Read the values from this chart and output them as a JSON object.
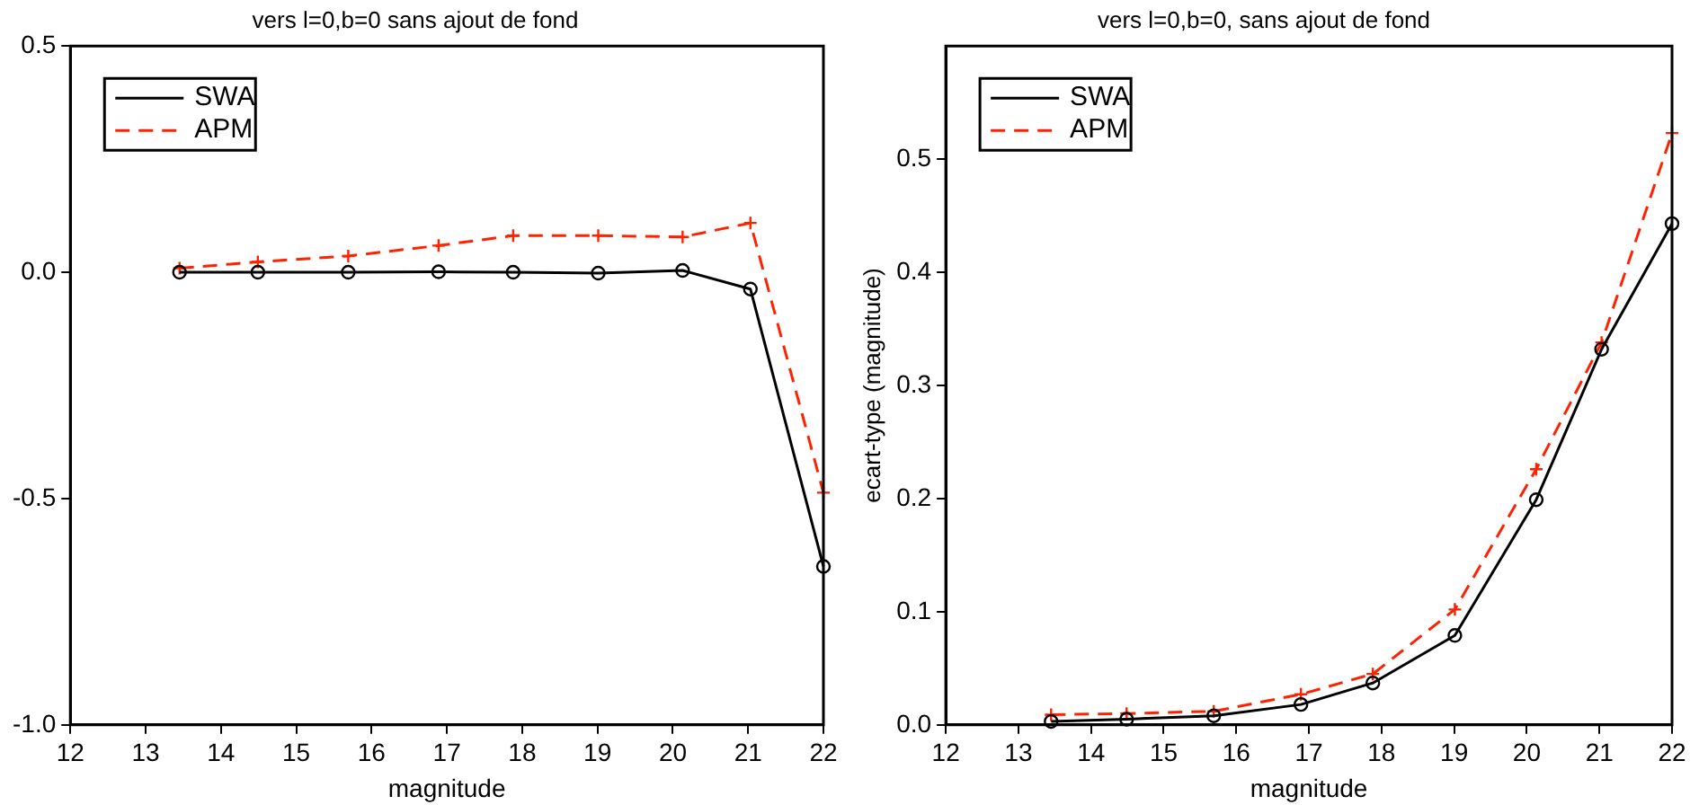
{
  "chart_data": [
    {
      "type": "line",
      "title": "vers l=0,b=0 sans ajout de fond",
      "xlabel": "magnitude",
      "xlim": [
        12,
        22
      ],
      "xticks": [
        12,
        13,
        14,
        15,
        16,
        17,
        18,
        19,
        20,
        21,
        22
      ],
      "ylim": [
        -1.0,
        0.5
      ],
      "yticks": [
        {
          "value": -1.0,
          "label": "-1.0"
        },
        {
          "value": -0.5,
          "label": "-0.5"
        },
        {
          "value": 0,
          "label": "0.0"
        },
        {
          "value": 0.5,
          "label": "0.5"
        }
      ],
      "grid": false,
      "legend": "top left",
      "x": [
        13.45,
        14.49,
        15.69,
        16.89,
        17.88,
        19.01,
        20.13,
        21.03,
        22.0
      ],
      "series": [
        {
          "name": "SWA",
          "color": "#000000",
          "marker": "circle",
          "line_style": "solid",
          "values": [
            0.0,
            0.0,
            0.0,
            0.001,
            0.0,
            -0.002,
            0.004,
            -0.037,
            -0.65
          ]
        },
        {
          "name": "APM",
          "color": "#ff2200",
          "marker": "cross",
          "line_style": "dashed",
          "values": [
            0.009,
            0.023,
            0.036,
            0.059,
            0.081,
            0.081,
            0.078,
            0.109,
            -0.487
          ]
        }
      ]
    },
    {
      "type": "line",
      "title": "vers l=0,b=0, sans ajout de fond",
      "xlabel": "magnitude",
      "ylabel": "ecart-type (magnitude)",
      "xlim": [
        12,
        22
      ],
      "xticks": [
        12,
        13,
        14,
        15,
        16,
        17,
        18,
        19,
        20,
        21,
        22
      ],
      "ylim": [
        0,
        0.6
      ],
      "yticks": [
        {
          "value": 0,
          "label": "0.0"
        },
        {
          "value": 0.1,
          "label": "0.1"
        },
        {
          "value": 0.2,
          "label": "0.2"
        },
        {
          "value": 0.3,
          "label": "0.3"
        },
        {
          "value": 0.4,
          "label": "0.4"
        },
        {
          "value": 0.5,
          "label": "0.5"
        }
      ],
      "grid": false,
      "legend": "top left",
      "x": [
        13.45,
        14.49,
        15.69,
        16.89,
        17.88,
        19.01,
        20.13,
        21.03,
        22.0
      ],
      "series": [
        {
          "name": "SWA",
          "color": "#000000",
          "marker": "circle",
          "line_style": "solid",
          "values": [
            0.003,
            0.005,
            0.008,
            0.018,
            0.037,
            0.079,
            0.199,
            0.332,
            0.443
          ]
        },
        {
          "name": "APM",
          "color": "#ff2200",
          "marker": "cross",
          "line_style": "dashed",
          "values": [
            0.009,
            0.01,
            0.012,
            0.027,
            0.045,
            0.102,
            0.226,
            0.338,
            0.523
          ]
        }
      ]
    }
  ]
}
